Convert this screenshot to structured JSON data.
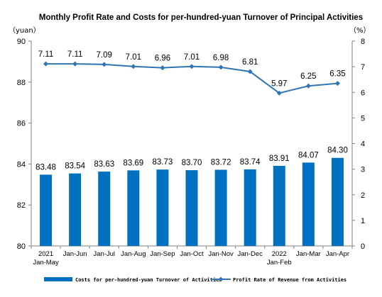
{
  "chart_data": {
    "title": "Monthly Profit Rate and Costs for per-hundred-yuan Turnover of Principal Activities",
    "left_unit": "（yuan）",
    "right_unit": "（%）",
    "categories": [
      [
        "2021",
        "Jan-May"
      ],
      [
        "Jan-Jun"
      ],
      [
        "Jan-Jul"
      ],
      [
        "Jan-Aug"
      ],
      [
        "Jan-Sep"
      ],
      [
        "Jan-Oct"
      ],
      [
        "Jan-Nov"
      ],
      [
        "Jan-Dec"
      ],
      [
        "2022",
        "Jan-Feb"
      ],
      [
        "Jan-Mar"
      ],
      [
        "Jan-Apr"
      ]
    ],
    "series": [
      {
        "name": "Costs for per-hundred-yuan Turnover of Activities",
        "type": "bar",
        "axis": "left",
        "color": "#0070C0",
        "values": [
          83.48,
          83.54,
          83.63,
          83.69,
          83.73,
          83.7,
          83.72,
          83.74,
          83.91,
          84.07,
          84.3
        ],
        "labels": [
          "83.48",
          "83.54",
          "83.63",
          "83.69",
          "83.73",
          "83.70",
          "83.72",
          "83.74",
          "83.91",
          "84.07",
          "84.30"
        ]
      },
      {
        "name": "Profit Rate of Revenue from Activities",
        "type": "line",
        "axis": "right",
        "color": "#2E75B6",
        "values": [
          7.11,
          7.11,
          7.09,
          7.01,
          6.96,
          7.01,
          6.98,
          6.81,
          5.97,
          6.25,
          6.35
        ],
        "labels": [
          "7.11",
          "7.11",
          "7.09",
          "7.01",
          "6.96",
          "7.01",
          "6.98",
          "6.81",
          "5.97",
          "6.25",
          "6.35"
        ]
      }
    ],
    "left_axis": {
      "min": 80,
      "max": 90,
      "ticks": [
        "80",
        "82",
        "84",
        "86",
        "88",
        "90"
      ]
    },
    "right_axis": {
      "min": 0,
      "max": 8,
      "ticks": [
        "0",
        "1",
        "2",
        "3",
        "4",
        "5",
        "6",
        "7",
        "8"
      ]
    },
    "grid": false,
    "legend_position": "bottom"
  }
}
